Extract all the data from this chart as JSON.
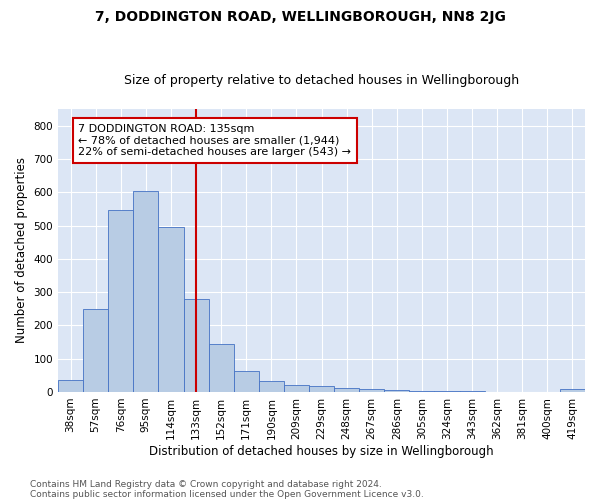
{
  "title": "7, DODDINGTON ROAD, WELLINGBOROUGH, NN8 2JG",
  "subtitle": "Size of property relative to detached houses in Wellingborough",
  "xlabel": "Distribution of detached houses by size in Wellingborough",
  "ylabel": "Number of detached properties",
  "categories": [
    "38sqm",
    "57sqm",
    "76sqm",
    "95sqm",
    "114sqm",
    "133sqm",
    "152sqm",
    "171sqm",
    "190sqm",
    "209sqm",
    "229sqm",
    "248sqm",
    "267sqm",
    "286sqm",
    "305sqm",
    "324sqm",
    "343sqm",
    "362sqm",
    "381sqm",
    "400sqm",
    "419sqm"
  ],
  "values": [
    35,
    250,
    548,
    605,
    495,
    280,
    145,
    62,
    32,
    22,
    17,
    13,
    8,
    5,
    3,
    2,
    2,
    1,
    1,
    0,
    8
  ],
  "bar_color": "#b8cce4",
  "bar_edge_color": "#4472c4",
  "vline_color": "#cc0000",
  "vline_x": 5.5,
  "annotation_text": "7 DODDINGTON ROAD: 135sqm\n← 78% of detached houses are smaller (1,944)\n22% of semi-detached houses are larger (543) →",
  "annotation_box_color": "#ffffff",
  "annotation_box_edge": "#cc0000",
  "footer_text": "Contains HM Land Registry data © Crown copyright and database right 2024.\nContains public sector information licensed under the Open Government Licence v3.0.",
  "ylim": [
    0,
    850
  ],
  "yticks": [
    0,
    100,
    200,
    300,
    400,
    500,
    600,
    700,
    800
  ],
  "fig_bg_color": "#ffffff",
  "plot_bg_color": "#dce6f5",
  "grid_color": "#ffffff",
  "title_fontsize": 10,
  "subtitle_fontsize": 9,
  "axis_label_fontsize": 8.5,
  "tick_fontsize": 7.5,
  "annotation_fontsize": 8,
  "footer_fontsize": 6.5
}
